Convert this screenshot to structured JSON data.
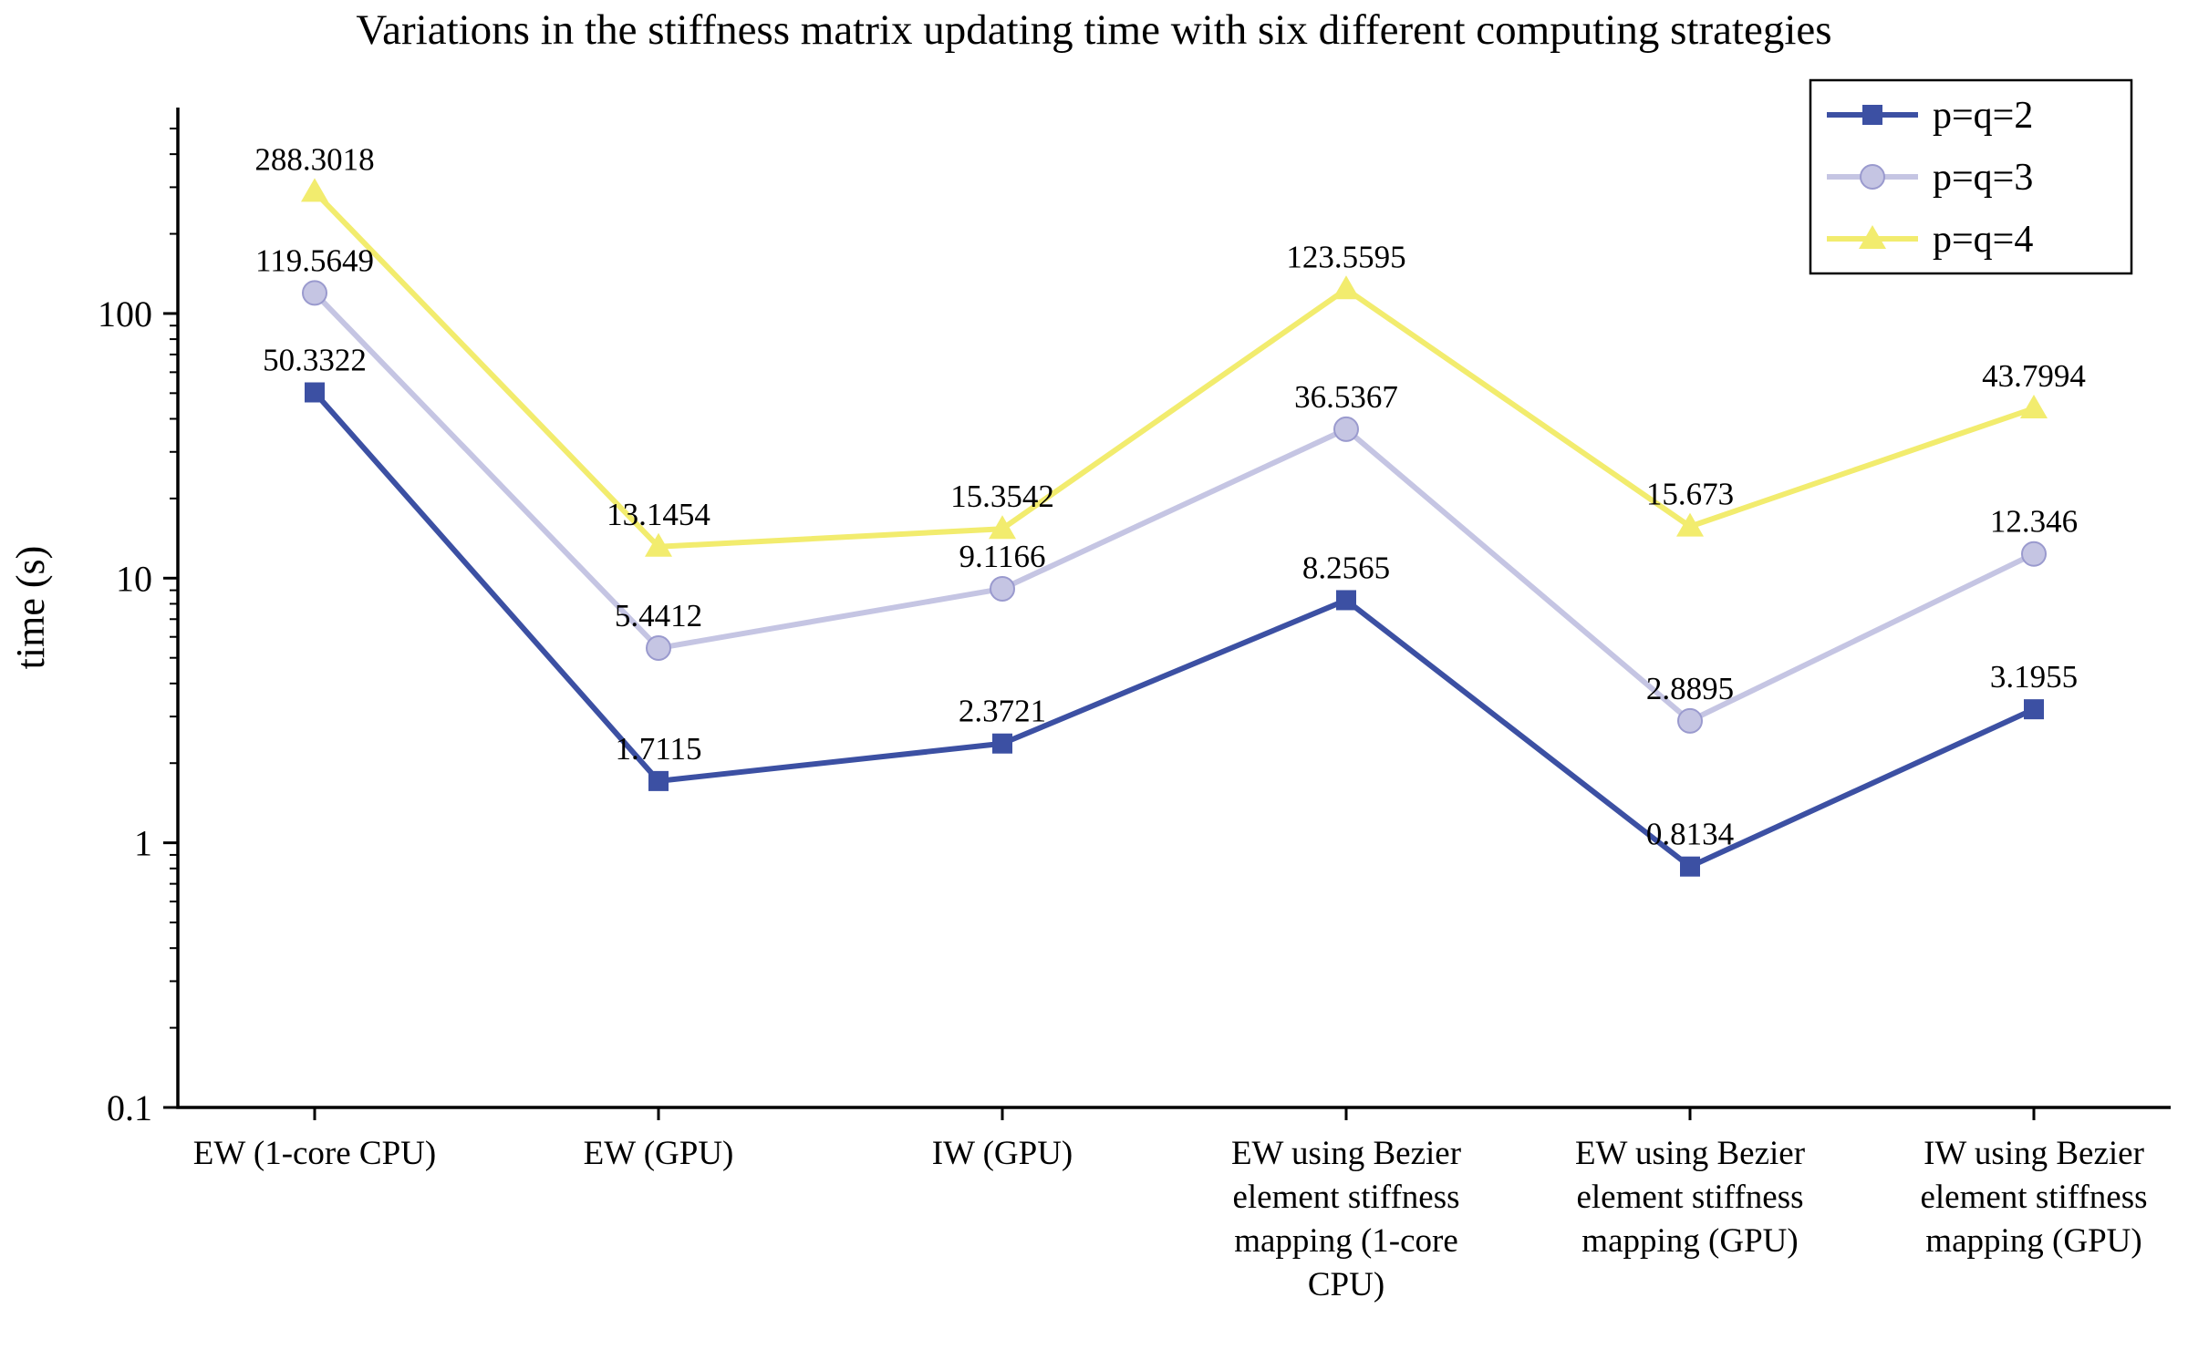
{
  "chart_data": {
    "type": "line",
    "title": "Variations in the stiffness matrix updating time with six different computing strategies",
    "xlabel": "",
    "ylabel": "time (s)",
    "yscale": "log",
    "ylim": [
      0.1,
      600
    ],
    "yticks": [
      0.1,
      1,
      10,
      100
    ],
    "ytick_labels": [
      "0.1",
      "1",
      "10",
      "100"
    ],
    "grid": false,
    "legend_position": "top-right",
    "categories": [
      "EW (1-core CPU)",
      "EW (GPU)",
      "IW (GPU)",
      "EW using Bezier element stiffness mapping (1-core CPU)",
      "EW using Bezier element stiffness mapping (GPU)",
      "IW using Bezier element stiffness mapping (GPU)"
    ],
    "category_label_lines": [
      [
        "EW (1-core CPU)"
      ],
      [
        "EW (GPU)"
      ],
      [
        "IW (GPU)"
      ],
      [
        "EW using Bezier",
        "element stiffness",
        "mapping (1-core",
        "CPU)"
      ],
      [
        "EW using Bezier",
        "element stiffness",
        "mapping (GPU)"
      ],
      [
        "IW using Bezier",
        "element stiffness",
        "mapping (GPU)"
      ]
    ],
    "series": [
      {
        "name": "p=q=2",
        "marker": "square",
        "color": "#3C50A3",
        "values": [
          50.3322,
          1.7115,
          2.3721,
          8.2565,
          0.8134,
          3.1955
        ],
        "labels": [
          "50.3322",
          "1.7115",
          "2.3721",
          "8.2565",
          "0.8134",
          "3.1955"
        ]
      },
      {
        "name": "p=q=3",
        "marker": "circle",
        "color": "#C5C5E3",
        "values": [
          119.5649,
          5.4412,
          9.1166,
          36.5367,
          2.8895,
          12.346
        ],
        "labels": [
          "119.5649",
          "5.4412",
          "9.1166",
          "36.5367",
          "2.8895",
          "12.346"
        ]
      },
      {
        "name": "p=q=4",
        "marker": "triangle",
        "color": "#F2EC6E",
        "values": [
          288.3018,
          13.1454,
          15.3542,
          123.5595,
          15.673,
          43.7994
        ],
        "labels": [
          "288.3018",
          "13.1454",
          "15.3542",
          "123.5595",
          "15.673",
          "43.7994"
        ]
      }
    ]
  }
}
